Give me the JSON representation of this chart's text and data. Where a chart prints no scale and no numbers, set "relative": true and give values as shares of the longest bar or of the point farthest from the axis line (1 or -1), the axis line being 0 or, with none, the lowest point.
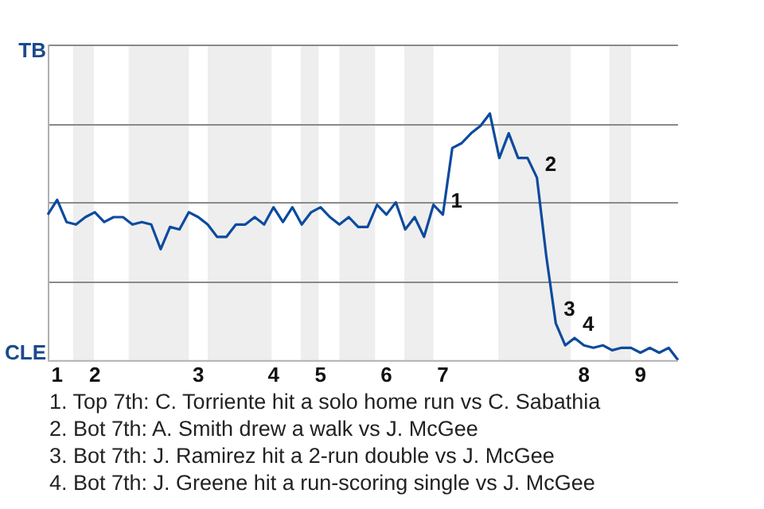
{
  "chart_data": {
    "type": "line",
    "relative": true,
    "categories": [
      null,
      "1",
      null,
      null,
      null,
      "2",
      null,
      null,
      null,
      null,
      null,
      null,
      null,
      null,
      null,
      null,
      "3",
      null,
      null,
      null,
      null,
      null,
      null,
      null,
      "4",
      null,
      null,
      null,
      null,
      "5",
      null,
      null,
      null,
      null,
      null,
      null,
      "6",
      null,
      null,
      null,
      null,
      null,
      "7",
      null,
      null,
      null,
      null,
      null,
      null,
      null,
      null,
      null,
      null,
      null,
      null,
      null,
      null,
      "8",
      null,
      null,
      null,
      null,
      null,
      "9",
      null,
      null,
      null,
      null
    ],
    "series": [
      {
        "color": "#0d4a9e",
        "values": [
          0.59,
          0.65,
          0.56,
          0.55,
          0.58,
          0.6,
          0.56,
          0.58,
          0.58,
          0.55,
          0.56,
          0.55,
          0.45,
          0.54,
          0.53,
          0.6,
          0.58,
          0.55,
          0.5,
          0.5,
          0.55,
          0.55,
          0.58,
          0.55,
          0.62,
          0.56,
          0.62,
          0.55,
          0.6,
          0.62,
          0.58,
          0.55,
          0.58,
          0.54,
          0.54,
          0.63,
          0.59,
          0.64,
          0.53,
          0.58,
          0.5,
          0.63,
          0.59,
          0.86,
          0.88,
          0.92,
          0.95,
          1,
          0.82,
          0.92,
          0.82,
          0.82,
          0.74,
          0.42,
          0.15,
          0.06,
          0.09,
          0.06,
          0.05,
          0.06,
          0.04,
          0.05,
          0.05,
          0.03,
          0.05,
          0.03,
          0.05,
          0
        ]
      }
    ],
    "grid": "y",
    "legend": false,
    "marker": "none",
    "line_style": "solid",
    "annotations": [
      "TB",
      "CLE",
      "1",
      "2",
      "3",
      "4",
      "1. Top 7th: C. Torriente hit a solo home run vs C. Sabathia",
      "2. Bot 7th: A. Smith drew a walk vs J. McGee",
      "3. Bot 7th: J. Ramirez hit a 2-run double vs J. McGee",
      "4. Bot 7th: J. Greene hit a run-scoring single vs J. McGee"
    ]
  }
}
